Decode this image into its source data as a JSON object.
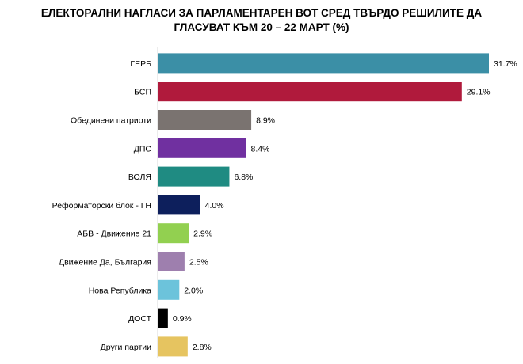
{
  "chart_data": {
    "type": "bar",
    "orientation": "horizontal",
    "title_lines": [
      "ЕЛЕКТОРАЛНИ НАГЛАСИ ЗА ПАРЛАМЕНТАРЕН ВОТ СРЕД ТВЪРДО РЕШИЛИТЕ ДА",
      "ГЛАСУВАТ КЪМ 20 – 22 МАРТ (%)"
    ],
    "categories": [
      "ГЕРБ",
      "БСП",
      "Обединени патриоти",
      "ДПС",
      "ВОЛЯ",
      "Реформаторски блок - ГН",
      "АБВ - Движение 21",
      "Движение Да, България",
      "Нова Република",
      "ДОСТ",
      "Други партии"
    ],
    "values": [
      31.7,
      29.1,
      8.9,
      8.4,
      6.8,
      4.0,
      2.9,
      2.5,
      2.0,
      0.9,
      2.8
    ],
    "value_labels": [
      "31.7%",
      "29.1%",
      "8.9%",
      "8.4%",
      "6.8%",
      "4.0%",
      "2.9%",
      "2.5%",
      "2.0%",
      "0.9%",
      "2.8%"
    ],
    "colors": [
      "#3b8fa6",
      "#b01a3c",
      "#7a7370",
      "#7030a0",
      "#1f8b82",
      "#0d1f5c",
      "#92d050",
      "#9e7fae",
      "#6cc3db",
      "#000000",
      "#e6c460"
    ],
    "xlim": [
      0,
      31.7
    ],
    "grid": false,
    "legend": "none"
  }
}
